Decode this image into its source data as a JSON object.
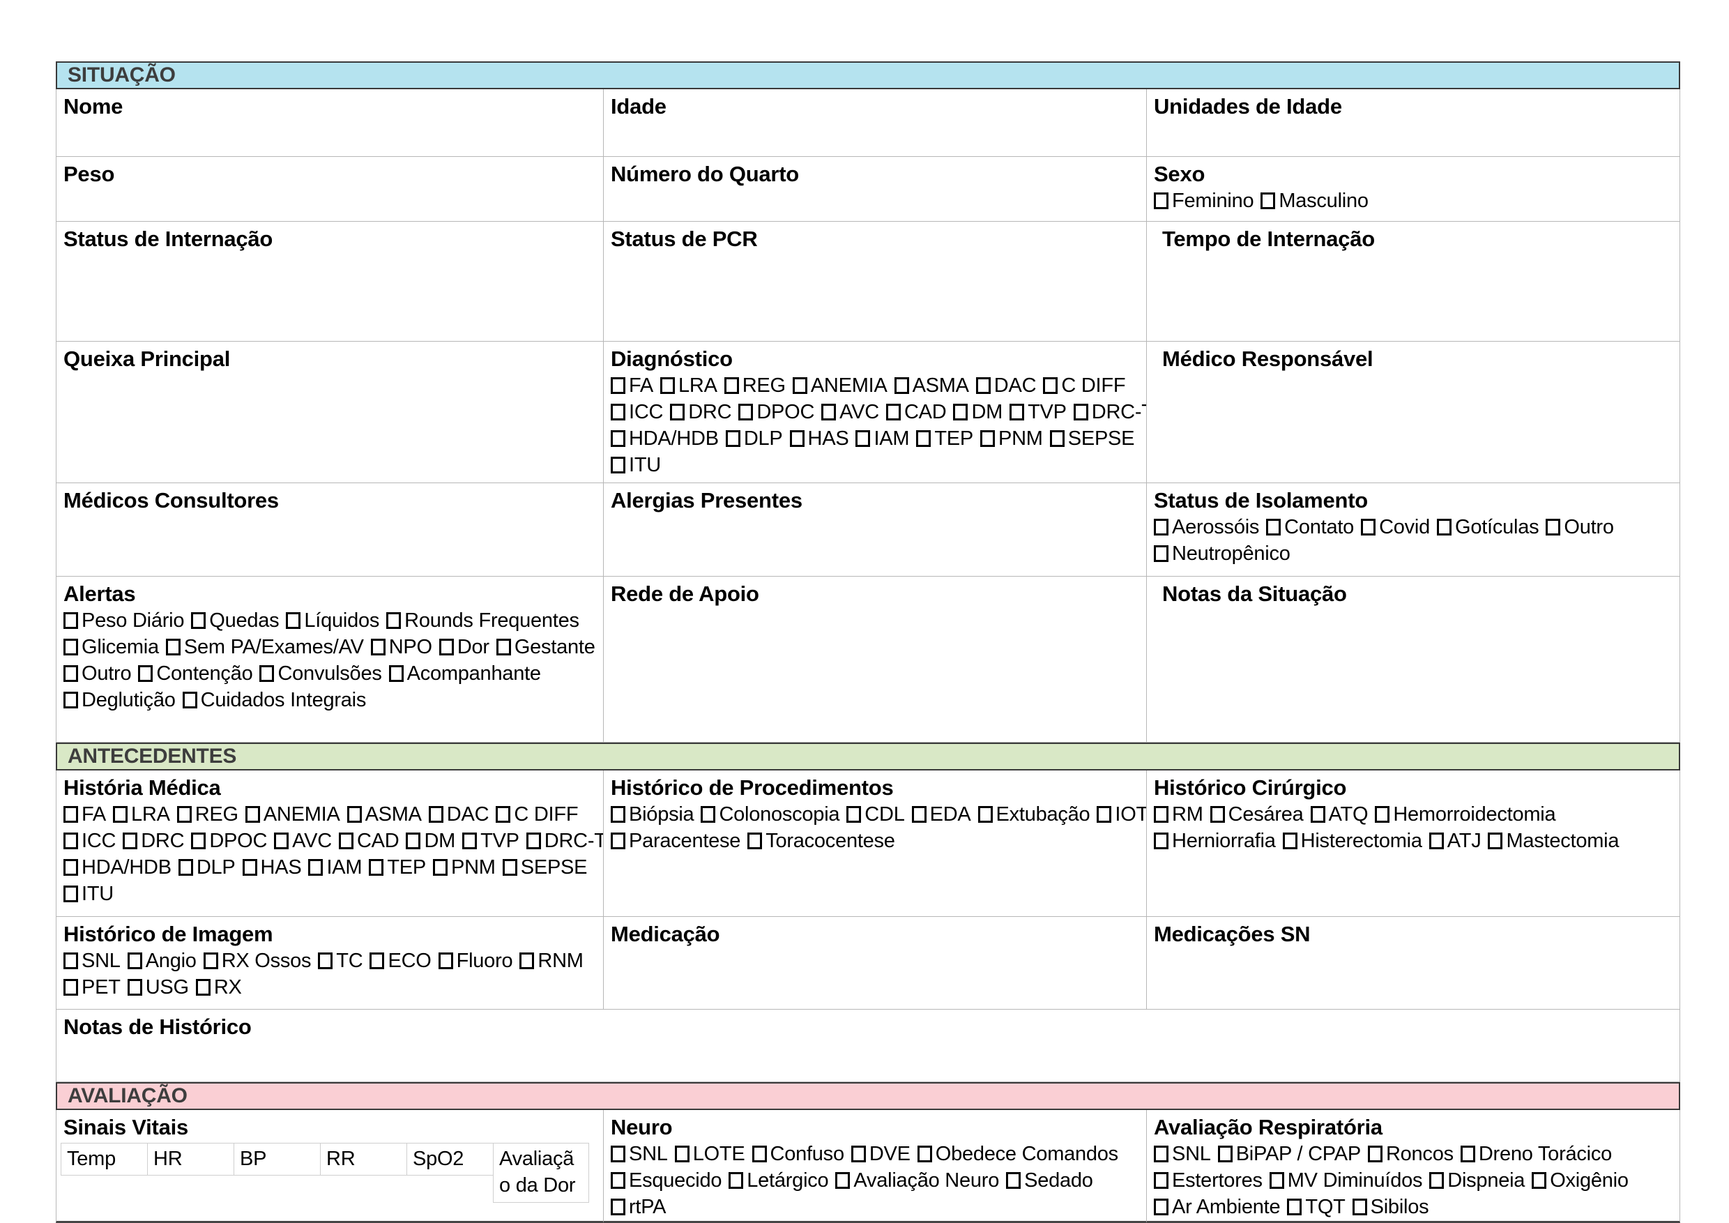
{
  "colors": {
    "situacao_bg": "#b5e3ef",
    "antecedentes_bg": "#d9e8c6",
    "avaliacao_bg": "#facfd4",
    "bar_text": "#3d3d3d",
    "cell_border": "#b7b7b7"
  },
  "situacao": {
    "title": "SITUAÇÃO",
    "nome": "Nome",
    "idade": "Idade",
    "unidades_idade": "Unidades de Idade",
    "peso": "Peso",
    "numero_quarto": "Número do Quarto",
    "sexo": {
      "label": "Sexo",
      "lines": [
        [
          "Feminino",
          "Masculino"
        ]
      ]
    },
    "status_internacao": "Status de Internação",
    "status_pcr": "Status de PCR",
    "tempo_internacao": "Tempo de Internação",
    "queixa_principal": "Queixa Principal",
    "diagnostico": {
      "label": "Diagnóstico",
      "lines": [
        [
          "FA",
          "LRA",
          "REG",
          "ANEMIA",
          "ASMA",
          "DAC",
          "C DIFF"
        ],
        [
          "ICC",
          "DRC",
          "DPOC",
          "AVC",
          "CAD",
          "DM",
          "TVP",
          "DRC-T"
        ],
        [
          "HDA/HDB",
          "DLP",
          "HAS",
          "IAM",
          "TEP",
          "PNM",
          "SEPSE"
        ],
        [
          "ITU"
        ]
      ]
    },
    "medico_responsavel": "Médico Responsável",
    "medicos_consultores": "Médicos Consultores",
    "alergias_presentes": "Alergias Presentes",
    "status_isolamento": {
      "label": "Status de Isolamento",
      "lines": [
        [
          "Aerossóis",
          "Contato",
          "Covid",
          "Gotículas",
          "Outro"
        ],
        [
          "Neutropênico"
        ]
      ]
    },
    "alertas": {
      "label": "Alertas",
      "lines": [
        [
          "Peso Diário",
          "Quedas",
          "Líquidos",
          "Rounds Frequentes"
        ],
        [
          "Glicemia",
          "Sem PA/Exames/AV",
          "NPO",
          "Dor",
          "Gestante"
        ],
        [
          "Outro",
          "Contenção",
          "Convulsões",
          "Acompanhante"
        ],
        [
          "Deglutição",
          "Cuidados Integrais"
        ]
      ]
    },
    "rede_apoio": "Rede de Apoio",
    "notas_situacao": "Notas da Situação"
  },
  "antecedentes": {
    "title": "ANTECEDENTES",
    "historia_medica": {
      "label": "História Médica",
      "lines": [
        [
          "FA",
          "LRA",
          "REG",
          "ANEMIA",
          "ASMA",
          "DAC",
          "C DIFF"
        ],
        [
          "ICC",
          "DRC",
          "DPOC",
          "AVC",
          "CAD",
          "DM",
          "TVP",
          "DRC-T"
        ],
        [
          "HDA/HDB",
          "DLP",
          "HAS",
          "IAM",
          "TEP",
          "PNM",
          "SEPSE"
        ],
        [
          "ITU"
        ]
      ]
    },
    "historico_procedimentos": {
      "label": "Histórico de Procedimentos",
      "lines": [
        [
          "Biópsia",
          "Colonoscopia",
          "CDL",
          "EDA",
          "Extubação",
          "IOT"
        ],
        [
          "Paracentese",
          "Toracocentese"
        ]
      ]
    },
    "historico_cirurgico": {
      "label": "Histórico Cirúrgico",
      "lines": [
        [
          "RM",
          "Cesárea",
          "ATQ",
          "Hemorroidectomia"
        ],
        [
          "Herniorrafia",
          "Histerectomia",
          "ATJ",
          "Mastectomia"
        ]
      ]
    },
    "historico_imagem": {
      "label": "Histórico de Imagem",
      "lines": [
        [
          "SNL",
          "Angio",
          "RX Ossos",
          "TC",
          "ECO",
          "Fluoro",
          "RNM"
        ],
        [
          "PET",
          "USG",
          "RX"
        ]
      ]
    },
    "medicacao": "Medicação",
    "medicacoes_sn": "Medicações SN",
    "notas_historico": "Notas de Histórico"
  },
  "avaliacao": {
    "title": "AVALIAÇÃO",
    "sinais_vitais": "Sinais Vitais",
    "vitais_cols": [
      "Temp",
      "HR",
      "BP",
      "RR",
      "SpO2",
      "Avaliação da Dor"
    ],
    "neuro": {
      "label": "Neuro",
      "lines": [
        [
          "SNL",
          "LOTE",
          "Confuso",
          "DVE",
          "Obedece Comandos"
        ],
        [
          "Esquecido",
          "Letárgico",
          "Avaliação Neuro",
          "Sedado"
        ],
        [
          "rtPA"
        ]
      ]
    },
    "avaliacao_respiratoria": {
      "label": "Avaliação Respiratória",
      "lines": [
        [
          "SNL",
          "BiPAP / CPAP",
          "Roncos",
          "Dreno Torácico"
        ],
        [
          "Estertores",
          "MV Diminuídos",
          "Dispneia",
          "Oxigênio"
        ],
        [
          "Ar Ambiente",
          "TQT",
          "Sibilos"
        ]
      ]
    }
  }
}
